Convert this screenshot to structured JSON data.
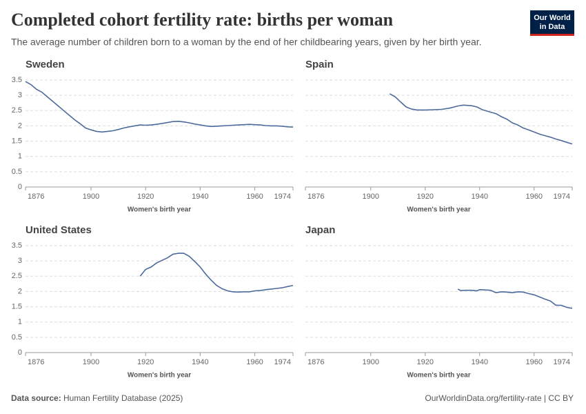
{
  "header": {
    "title": "Completed cohort fertility rate: births per woman",
    "subtitle": "The average number of children born to a woman by the end of her childbearing years, given by her birth year.",
    "logo": [
      "Our World",
      "in Data"
    ]
  },
  "footer": {
    "source_label": "Data source:",
    "source": "Human Fertility Database (2025)",
    "credit": "OurWorldinData.org/fertility-rate | CC BY"
  },
  "chart_data": [
    {
      "type": "line",
      "title": "Sweden",
      "xlabel": "Women's birth year",
      "color": "#4c6a9c",
      "grid": true,
      "xlim": [
        1876,
        1974
      ],
      "xticks": [
        1876,
        1900,
        1920,
        1940,
        1960,
        1974
      ],
      "ylim": [
        0,
        3.5
      ],
      "yticks": [
        0,
        0.5,
        1,
        1.5,
        2,
        2.5,
        3,
        3.5
      ],
      "x": [
        1876,
        1878,
        1880,
        1882,
        1884,
        1886,
        1888,
        1890,
        1892,
        1894,
        1896,
        1898,
        1900,
        1902,
        1904,
        1906,
        1908,
        1910,
        1912,
        1914,
        1916,
        1918,
        1920,
        1922,
        1924,
        1926,
        1928,
        1930,
        1932,
        1934,
        1936,
        1938,
        1940,
        1942,
        1944,
        1946,
        1948,
        1950,
        1952,
        1954,
        1956,
        1958,
        1960,
        1962,
        1964,
        1966,
        1968,
        1970,
        1972,
        1974
      ],
      "values": [
        3.45,
        3.35,
        3.2,
        3.1,
        2.95,
        2.8,
        2.65,
        2.5,
        2.35,
        2.2,
        2.07,
        1.93,
        1.87,
        1.82,
        1.8,
        1.82,
        1.84,
        1.88,
        1.93,
        1.97,
        2.0,
        2.03,
        2.02,
        2.03,
        2.05,
        2.08,
        2.11,
        2.14,
        2.15,
        2.13,
        2.1,
        2.06,
        2.03,
        2.0,
        1.98,
        1.99,
        2.0,
        2.01,
        2.02,
        2.03,
        2.04,
        2.05,
        2.04,
        2.03,
        2.01,
        2.0,
        2.0,
        1.99,
        1.97,
        1.96
      ]
    },
    {
      "type": "line",
      "title": "Spain",
      "xlabel": "Women's birth year",
      "color": "#4c6a9c",
      "grid": true,
      "xlim": [
        1876,
        1974
      ],
      "xticks": [
        1876,
        1900,
        1920,
        1940,
        1960,
        1974
      ],
      "ylim": [
        0,
        3.5
      ],
      "yticks": [
        0,
        0.5,
        1,
        1.5,
        2,
        2.5,
        3,
        3.5
      ],
      "x": [
        1907,
        1909,
        1911,
        1913,
        1915,
        1917,
        1920,
        1923,
        1926,
        1929,
        1932,
        1934,
        1937,
        1939,
        1941,
        1944,
        1946,
        1948,
        1950,
        1952,
        1954,
        1956,
        1958,
        1960,
        1962,
        1964,
        1966,
        1968,
        1970,
        1972,
        1974
      ],
      "values": [
        3.05,
        2.95,
        2.78,
        2.62,
        2.55,
        2.52,
        2.52,
        2.53,
        2.54,
        2.58,
        2.65,
        2.68,
        2.66,
        2.62,
        2.53,
        2.45,
        2.4,
        2.3,
        2.22,
        2.1,
        2.03,
        1.93,
        1.87,
        1.8,
        1.73,
        1.68,
        1.63,
        1.57,
        1.52,
        1.46,
        1.41
      ]
    },
    {
      "type": "line",
      "title": "United States",
      "xlabel": "Women's birth year",
      "color": "#4c6a9c",
      "grid": true,
      "xlim": [
        1876,
        1974
      ],
      "xticks": [
        1876,
        1900,
        1920,
        1940,
        1960,
        1974
      ],
      "ylim": [
        0,
        3.5
      ],
      "yticks": [
        0,
        0.5,
        1,
        1.5,
        2,
        2.5,
        3,
        3.5
      ],
      "x": [
        1918,
        1920,
        1922,
        1924,
        1926,
        1928,
        1930,
        1932,
        1934,
        1936,
        1938,
        1940,
        1942,
        1944,
        1946,
        1948,
        1950,
        1952,
        1954,
        1956,
        1958,
        1960,
        1962,
        1964,
        1966,
        1968,
        1970,
        1972,
        1974
      ],
      "values": [
        2.5,
        2.72,
        2.8,
        2.93,
        3.02,
        3.1,
        3.22,
        3.25,
        3.25,
        3.15,
        2.98,
        2.8,
        2.57,
        2.37,
        2.2,
        2.09,
        2.02,
        1.99,
        1.98,
        1.99,
        1.99,
        2.02,
        2.03,
        2.06,
        2.08,
        2.1,
        2.12,
        2.16,
        2.2
      ]
    },
    {
      "type": "line",
      "title": "Japan",
      "xlabel": "Women's birth year",
      "color": "#4c6a9c",
      "grid": true,
      "xlim": [
        1876,
        1974
      ],
      "xticks": [
        1876,
        1900,
        1920,
        1940,
        1960,
        1974
      ],
      "ylim": [
        0,
        3.5
      ],
      "yticks": [
        0,
        0.5,
        1,
        1.5,
        2,
        2.5,
        3,
        3.5
      ],
      "x": [
        1932,
        1933,
        1935,
        1937,
        1939,
        1940,
        1942,
        1944,
        1946,
        1948,
        1950,
        1952,
        1954,
        1956,
        1958,
        1960,
        1962,
        1964,
        1966,
        1968,
        1970,
        1972,
        1974
      ],
      "values": [
        2.08,
        2.03,
        2.04,
        2.04,
        2.02,
        2.06,
        2.05,
        2.04,
        1.96,
        1.99,
        1.98,
        1.96,
        1.99,
        1.98,
        1.93,
        1.89,
        1.82,
        1.75,
        1.69,
        1.55,
        1.55,
        1.48,
        1.45
      ]
    }
  ]
}
